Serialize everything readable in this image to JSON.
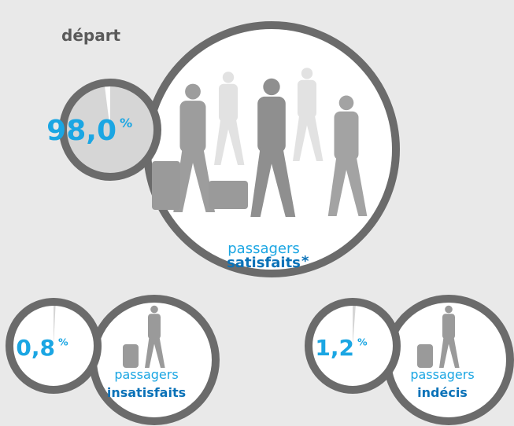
{
  "title": "départ",
  "items": [
    {
      "value": 98.0,
      "value_label": "98,0",
      "unit": "%",
      "line1": "passagers",
      "line2": "satisfaits",
      "note": "*"
    },
    {
      "value": 0.8,
      "value_label": "0,8",
      "unit": "%",
      "line1": "passagers",
      "line2": "insatisfaits"
    },
    {
      "value": 1.2,
      "value_label": "1,2",
      "unit": "%",
      "line1": "passagers",
      "line2": "indécis"
    }
  ]
}
